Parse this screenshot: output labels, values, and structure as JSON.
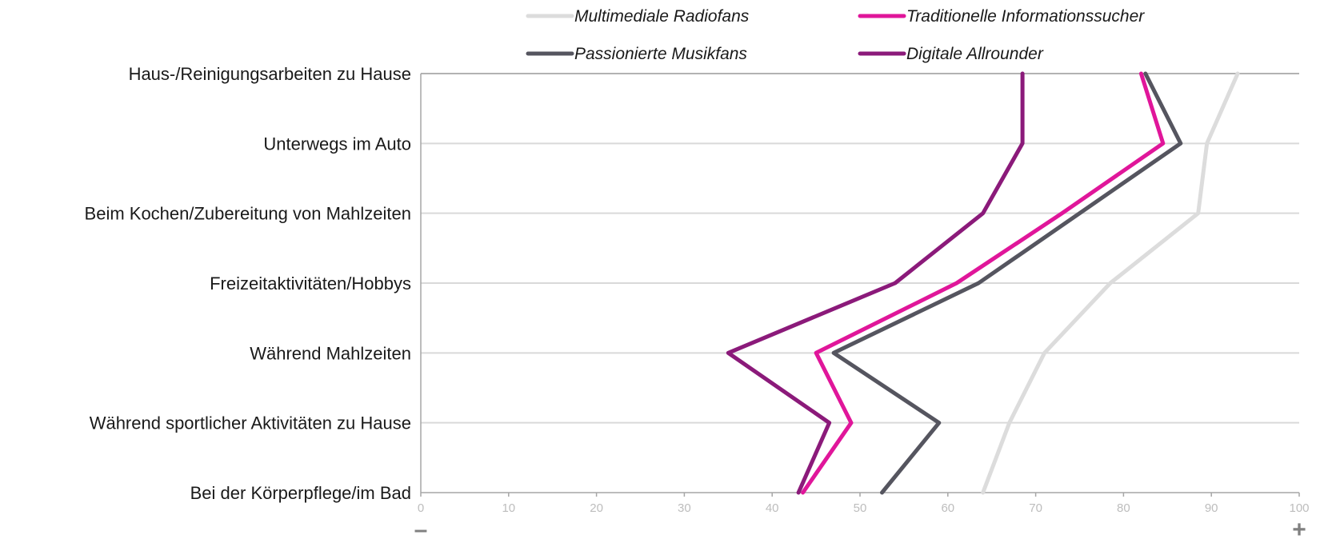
{
  "chart_data": {
    "type": "line",
    "orientation": "horizontal",
    "categories": [
      "Haus-/Reinigungsarbeiten zu Hause",
      "Unterwegs im Auto",
      "Beim Kochen/Zubereitung von Mahlzeiten",
      "Freizeitaktivitäten/Hobbys",
      "Während Mahlzeiten",
      "Während sportlicher Aktivitäten zu Hause",
      "Bei der Körperpflege/im Bad"
    ],
    "series": [
      {
        "name": "Multimediale Radiofans",
        "color": "#dcdcdc",
        "values": [
          93,
          89.5,
          88.5,
          78.5,
          71,
          67,
          64
        ]
      },
      {
        "name": "Passionierte Musikfans",
        "color": "#55555f",
        "values": [
          82.5,
          86.5,
          75,
          63.5,
          47,
          59,
          52.5
        ]
      },
      {
        "name": "Traditionelle Informationssucher",
        "color": "#e0169a",
        "values": [
          82,
          84.5,
          73,
          61,
          45,
          49,
          43.5
        ]
      },
      {
        "name": "Digitale Allrounder",
        "color": "#8b1a7a",
        "values": [
          68.5,
          68.5,
          64,
          54,
          35,
          46.5,
          43
        ]
      }
    ],
    "xlim": [
      0,
      100
    ],
    "x_ticks": [
      0,
      10,
      20,
      30,
      40,
      50,
      60,
      70,
      80,
      90,
      100
    ],
    "x_min_label": "–",
    "x_max_label": "+",
    "grid": true,
    "legend_position": "top"
  }
}
